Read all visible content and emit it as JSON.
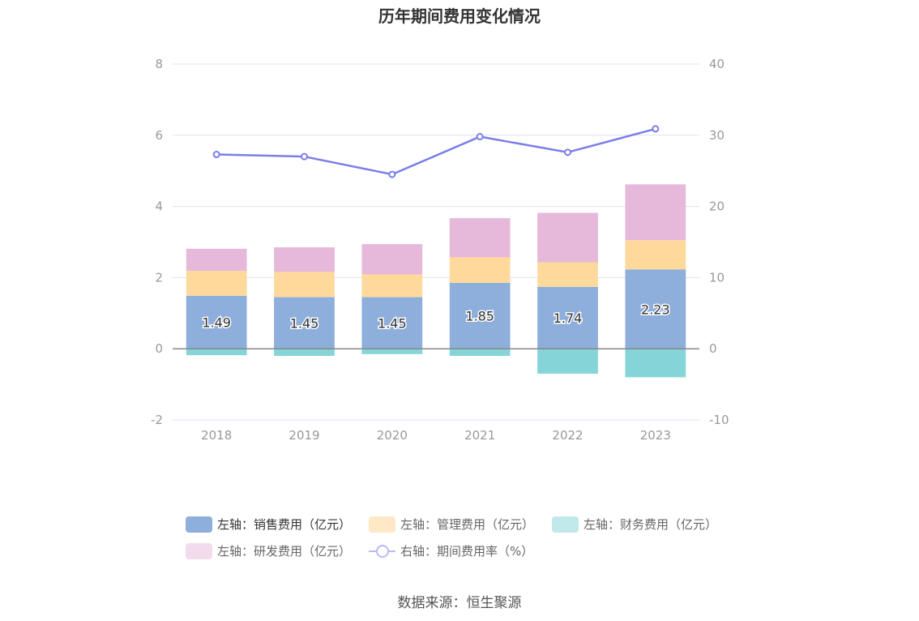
{
  "title": "历年期间费用变化情况",
  "source": "数据来源：恒生聚源",
  "colors": {
    "sales": "#8eaedc",
    "admin": "#fed99b",
    "finance": "#85d5d8",
    "rd": "#e6b8da",
    "rate": "#7b7fe8",
    "grid": "#e0e3f0",
    "axis_text": "#999999"
  },
  "legend": [
    {
      "label": "左轴：销售费用（亿元）",
      "color": "#8eaedc",
      "kind": "bar"
    },
    {
      "label": "左轴：管理费用（亿元）",
      "color": "#fde9c6",
      "kind": "bar"
    },
    {
      "label": "左轴：财务费用（亿元）",
      "color": "#c1e8ea",
      "kind": "bar"
    },
    {
      "label": "左轴：研发费用（亿元）",
      "color": "#f2dcec",
      "kind": "bar"
    },
    {
      "label": "右轴：期间费用率（%）",
      "color": "#b8bbf2",
      "kind": "line"
    }
  ],
  "chart_data": {
    "type": "bar",
    "stacked": true,
    "categories": [
      "2018",
      "2019",
      "2020",
      "2021",
      "2022",
      "2023"
    ],
    "series": [
      {
        "name": "左轴：销售费用（亿元）",
        "axis": "left",
        "values": [
          1.49,
          1.45,
          1.45,
          1.85,
          1.74,
          2.23
        ],
        "labels": [
          "1.49",
          "1.45",
          "1.45",
          "1.85",
          "1.74",
          "2.23"
        ]
      },
      {
        "name": "左轴：管理费用（亿元）",
        "axis": "left",
        "values": [
          0.7,
          0.71,
          0.64,
          0.72,
          0.69,
          0.82
        ]
      },
      {
        "name": "左轴：财务费用（亿元）",
        "axis": "left",
        "values": [
          -0.18,
          -0.2,
          -0.15,
          -0.2,
          -0.7,
          -0.8
        ]
      },
      {
        "name": "左轴：研发费用（亿元）",
        "axis": "left",
        "values": [
          0.62,
          0.69,
          0.85,
          1.1,
          1.39,
          1.57
        ]
      },
      {
        "name": "右轴：期间费用率（%）",
        "axis": "right",
        "type": "line",
        "values": [
          27.3,
          27.0,
          24.5,
          29.8,
          27.6,
          30.9
        ]
      }
    ],
    "left_axis": {
      "ylim": [
        -2,
        8
      ],
      "ticks": [
        "8",
        "6",
        "4",
        "2",
        "0",
        "-2"
      ],
      "tick_values": [
        8,
        6,
        4,
        2,
        0,
        -2
      ]
    },
    "right_axis": {
      "ylim": [
        -10,
        40
      ],
      "ticks": [
        "40",
        "30",
        "20",
        "10",
        "0",
        "-10"
      ],
      "tick_values": [
        40,
        30,
        20,
        10,
        0,
        -10
      ]
    },
    "grid": true,
    "legend_position": "bottom"
  }
}
